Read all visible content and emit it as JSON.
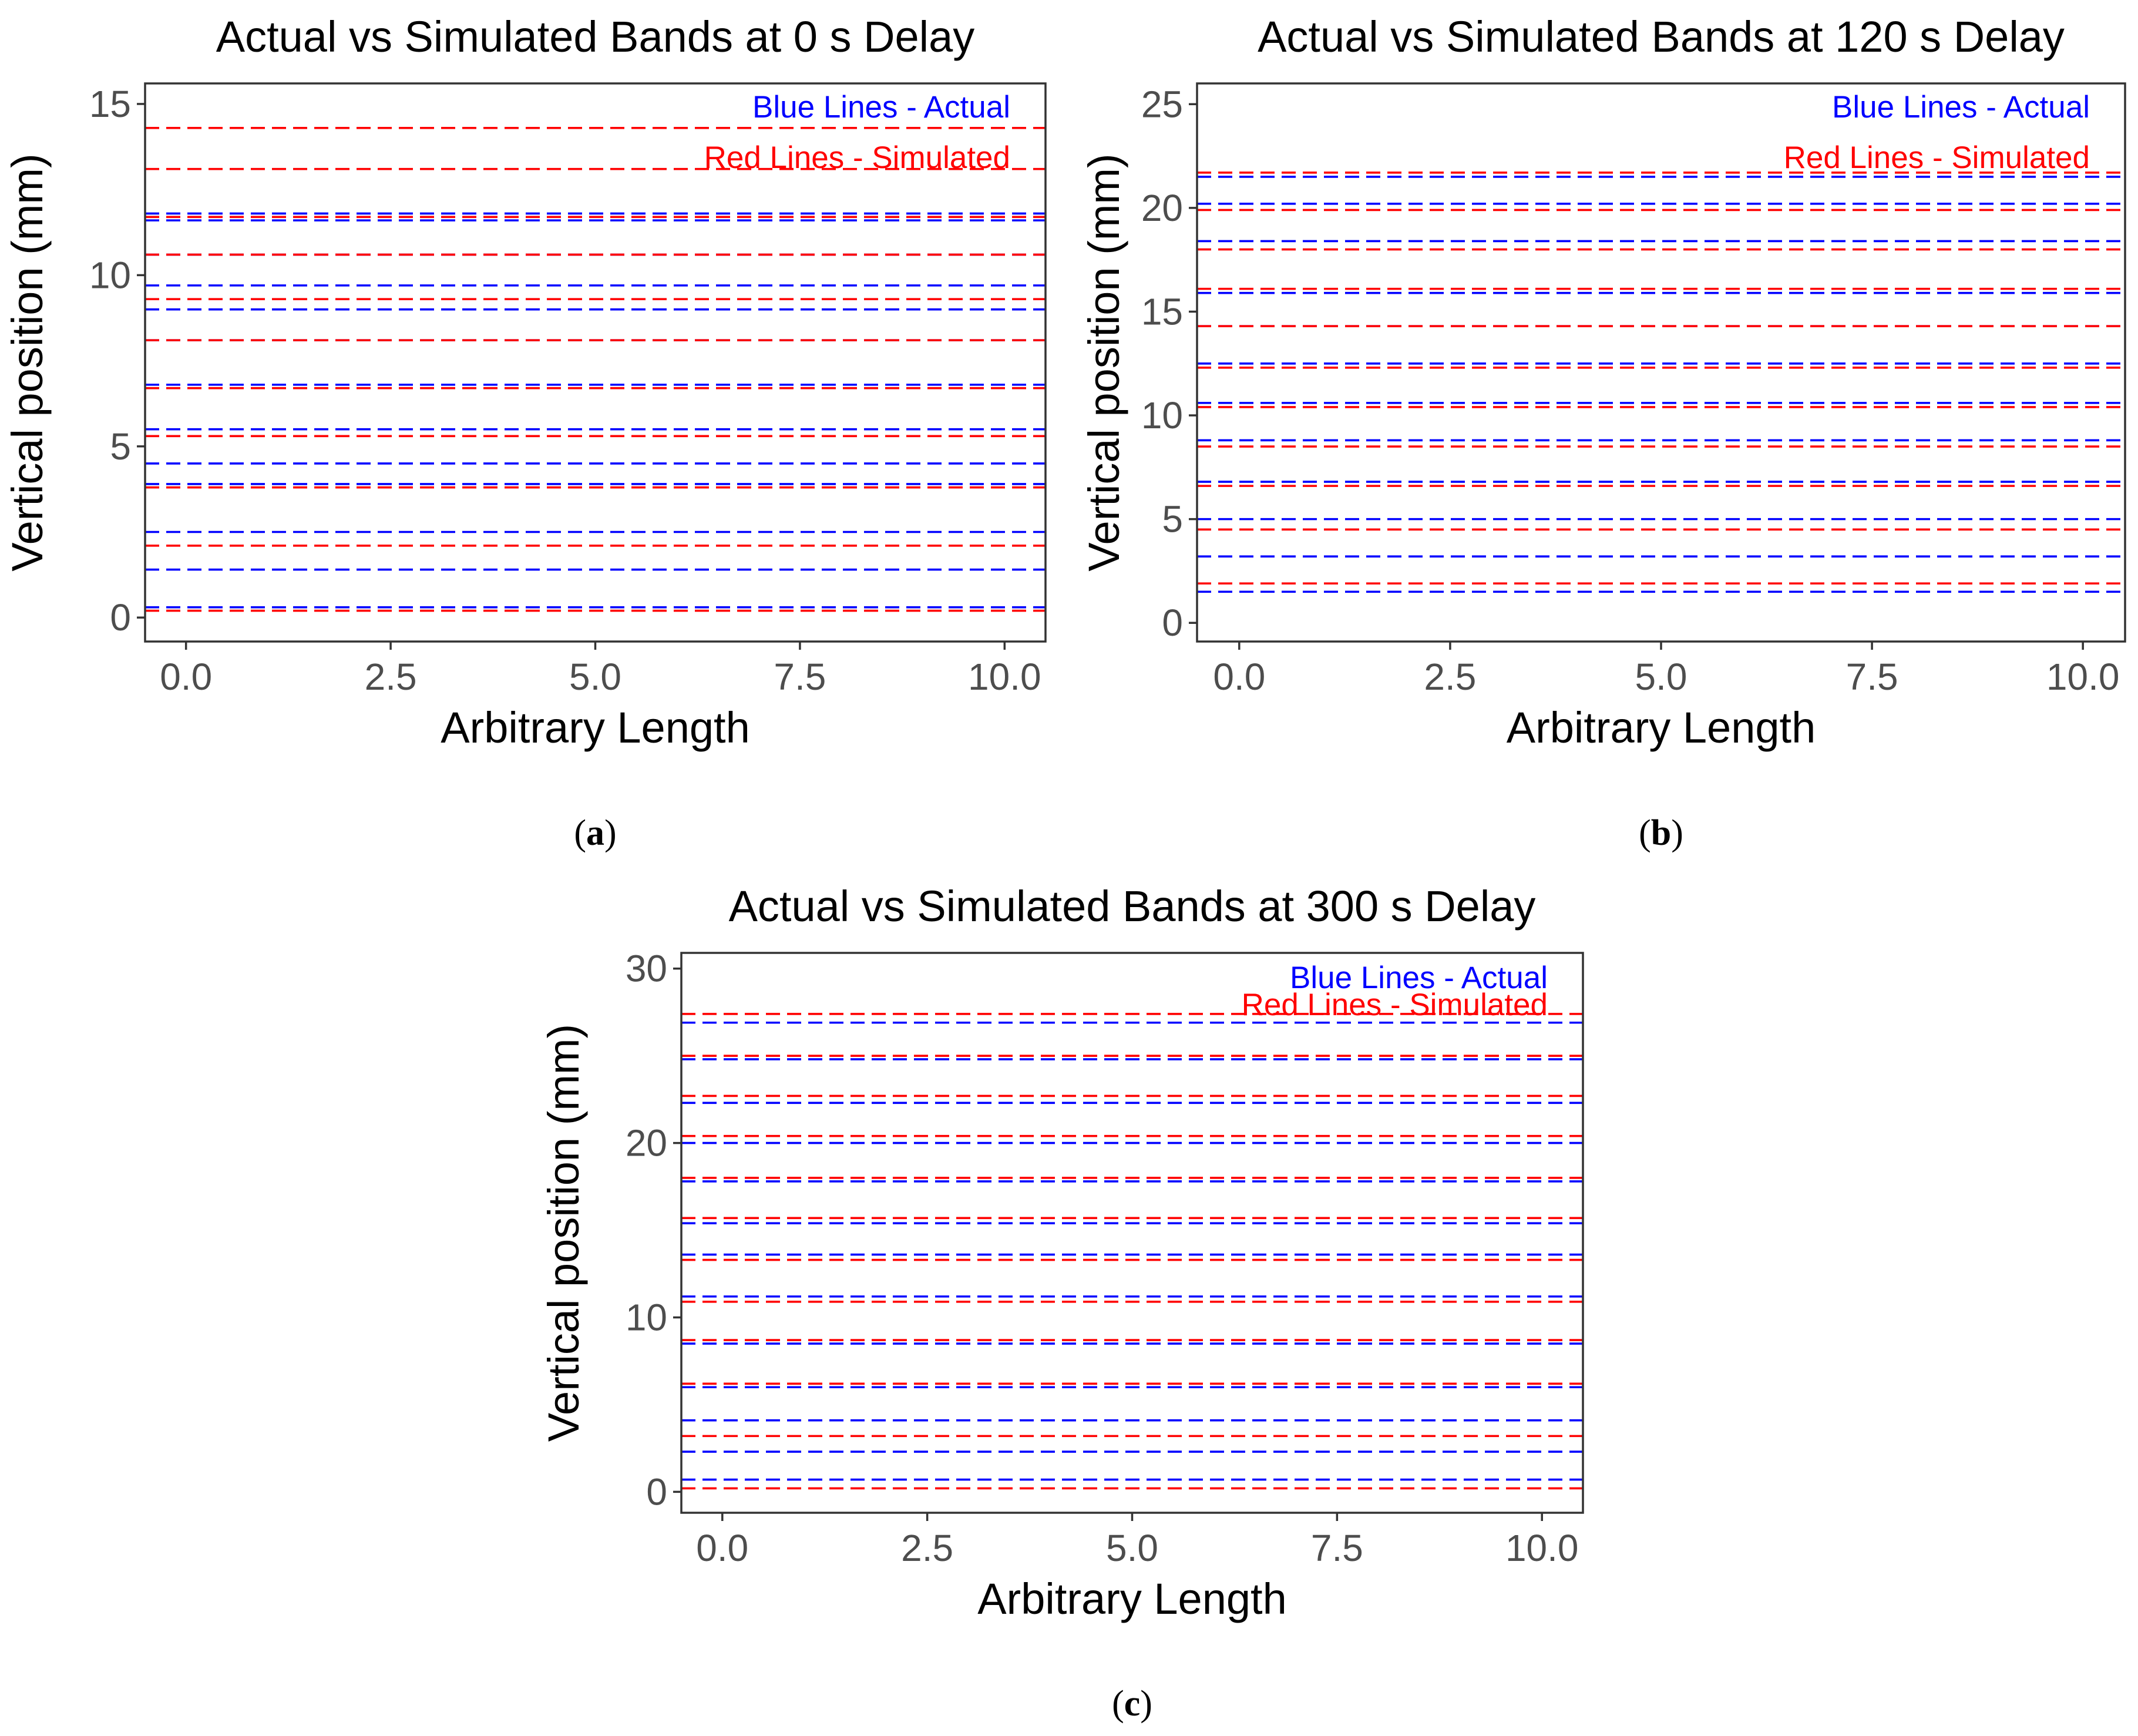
{
  "chart_data": [
    {
      "type": "line",
      "panel_label": "a",
      "title": "Actual vs Simulated Bands at 0 s Delay",
      "xlabel": "Arbitrary Length",
      "ylabel": "Vertical position (mm)",
      "xlim": [
        -0.5,
        10.5
      ],
      "ylim": [
        -0.7,
        15.6
      ],
      "xticks": [
        "0.0",
        "2.5",
        "5.0",
        "7.5",
        "10.0"
      ],
      "yticks": [
        "0",
        "5",
        "10",
        "15"
      ],
      "grid": false,
      "annotations": [
        {
          "text": "Blue Lines - Actual",
          "color": "#0000ff"
        },
        {
          "text": "Red Lines - Simulated",
          "color": "#ff0000"
        }
      ],
      "series": [
        {
          "name": "Blue Lines - Actual",
          "color": "#0000ff",
          "style": "dashed",
          "y": [
            0.3,
            1.4,
            2.5,
            3.9,
            4.5,
            5.5,
            6.8,
            8.1,
            9.0,
            9.7,
            10.6,
            11.6,
            11.8
          ]
        },
        {
          "name": "Red Lines - Simulated",
          "color": "#ff0000",
          "style": "dashed",
          "y": [
            0.2,
            2.1,
            3.8,
            5.3,
            6.7,
            8.1,
            9.3,
            10.6,
            11.7,
            13.1,
            14.3
          ]
        }
      ]
    },
    {
      "type": "line",
      "panel_label": "b",
      "title": "Actual vs Simulated Bands at 120 s Delay",
      "xlabel": "Arbitrary Length",
      "ylabel": "Vertical position (mm)",
      "xlim": [
        -0.5,
        10.5
      ],
      "ylim": [
        -0.9,
        26.0
      ],
      "xticks": [
        "0.0",
        "2.5",
        "5.0",
        "7.5",
        "10.0"
      ],
      "yticks": [
        "0",
        "5",
        "10",
        "15",
        "20",
        "25"
      ],
      "grid": false,
      "annotations": [
        {
          "text": "Blue Lines - Actual",
          "color": "#0000ff"
        },
        {
          "text": "Red Lines - Simulated",
          "color": "#ff0000"
        }
      ],
      "series": [
        {
          "name": "Blue Lines - Actual",
          "color": "#0000ff",
          "style": "dashed",
          "y": [
            1.5,
            3.2,
            5.0,
            6.8,
            8.8,
            10.6,
            12.5,
            14.3,
            15.9,
            18.4,
            20.2,
            21.5
          ]
        },
        {
          "name": "Red Lines - Simulated",
          "color": "#ff0000",
          "style": "dashed",
          "y": [
            1.9,
            4.5,
            6.6,
            8.5,
            10.4,
            12.3,
            14.3,
            16.1,
            18.0,
            19.9,
            21.7
          ]
        }
      ]
    },
    {
      "type": "line",
      "panel_label": "c",
      "title": "Actual vs Simulated Bands at 300 s Delay",
      "xlabel": "Arbitrary Length",
      "ylabel": "Vertical position (mm)",
      "xlim": [
        -0.5,
        10.5
      ],
      "ylim": [
        -1.2,
        30.9
      ],
      "xticks": [
        "0.0",
        "2.5",
        "5.0",
        "7.5",
        "10.0"
      ],
      "yticks": [
        "0",
        "10",
        "20",
        "30"
      ],
      "grid": false,
      "annotations": [
        {
          "text": "Blue Lines - Actual",
          "color": "#0000ff"
        },
        {
          "text": "Red Lines - Simulated",
          "color": "#ff0000"
        }
      ],
      "series": [
        {
          "name": "Blue Lines - Actual",
          "color": "#0000ff",
          "style": "dashed",
          "y": [
            0.7,
            2.3,
            4.1,
            6.0,
            8.5,
            11.2,
            13.6,
            15.4,
            17.8,
            20.0,
            22.3,
            24.8,
            26.9
          ]
        },
        {
          "name": "Red Lines - Simulated",
          "color": "#ff0000",
          "style": "dashed",
          "y": [
            0.2,
            3.2,
            6.2,
            8.7,
            10.9,
            13.3,
            15.7,
            18.0,
            20.4,
            22.7,
            25.0,
            27.4
          ]
        }
      ]
    }
  ]
}
